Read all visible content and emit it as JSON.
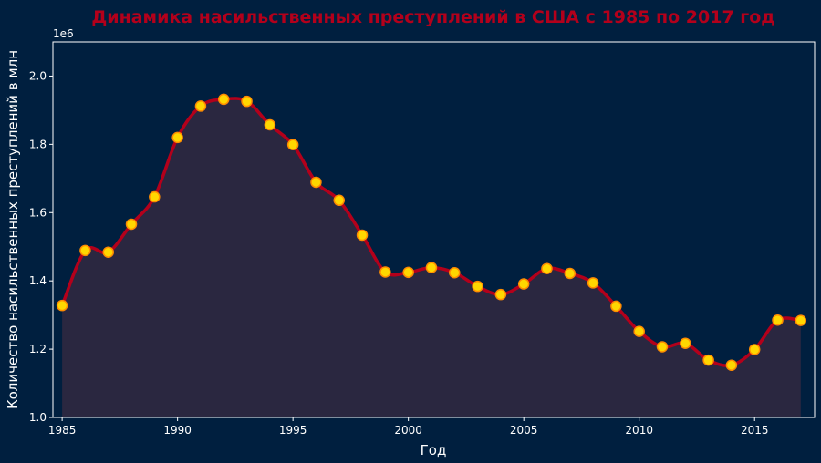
{
  "chart_data": {
    "type": "area",
    "title": "Динамика насильственных преступлений в США с 1985 по 2017 год",
    "xlabel": "Год",
    "ylabel": "Количество насильственных преступлений в млн",
    "y_offset_label": "1e6",
    "xlim": [
      1984.6,
      2017.6
    ],
    "ylim": [
      1.0,
      2.1
    ],
    "x_ticks": [
      1985,
      1990,
      1995,
      2000,
      2005,
      2010,
      2015
    ],
    "x_tick_labels": [
      "1985",
      "1990",
      "1995",
      "2000",
      "2005",
      "2010",
      "2015"
    ],
    "y_ticks": [
      1.0,
      1.2,
      1.4,
      1.6,
      1.8,
      2.0
    ],
    "y_tick_labels": [
      "1.0",
      "1.2",
      "1.4",
      "1.6",
      "1.8",
      "2.0"
    ],
    "grid": false,
    "series": [
      {
        "x": [
          1985,
          1986,
          1987,
          1988,
          1989,
          1990,
          1991,
          1992,
          1993,
          1994,
          1995,
          1996,
          1997,
          1998,
          1999,
          2000,
          2001,
          2002,
          2003,
          2004,
          2005,
          2006,
          2007,
          2008,
          2009,
          2010,
          2011,
          2012,
          2013,
          2014,
          2015,
          2016,
          2017
        ],
        "values": [
          1.328,
          1.489,
          1.484,
          1.566,
          1.646,
          1.82,
          1.912,
          1.932,
          1.926,
          1.857,
          1.799,
          1.689,
          1.636,
          1.534,
          1.426,
          1.425,
          1.439,
          1.424,
          1.384,
          1.36,
          1.391,
          1.436,
          1.422,
          1.394,
          1.326,
          1.252,
          1.207,
          1.217,
          1.168,
          1.153,
          1.199,
          1.285,
          1.284
        ]
      }
    ],
    "colors": {
      "background": "#001f3f",
      "line": "#b3001b",
      "marker_fill": "#ffd700",
      "marker_edge": "#ff8c00",
      "area_fill": "#2a2740",
      "axis": "#ffffff"
    }
  }
}
